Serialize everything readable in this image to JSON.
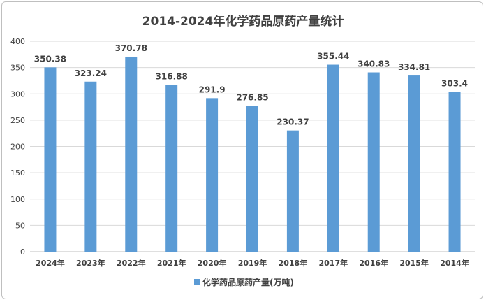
{
  "chart_data": {
    "type": "bar",
    "title": "2014-2024年化学药品原药产量统计",
    "categories": [
      "2024年",
      "2023年",
      "2022年",
      "2021年",
      "2020年",
      "2019年",
      "2018年",
      "2017年",
      "2016年",
      "2015年",
      "2014年"
    ],
    "series": [
      {
        "name": "化学药品原药产量(万吨)",
        "values": [
          350.38,
          323.24,
          370.78,
          316.88,
          291.9,
          276.85,
          230.37,
          355.44,
          340.83,
          334.81,
          303.4
        ],
        "labels": [
          "350.38",
          "323.24",
          "370.78",
          "316.88",
          "291.9",
          "276.85",
          "230.37",
          "355.44",
          "340.83",
          "334.81",
          "303.4"
        ]
      }
    ],
    "xlabel": "",
    "ylabel": "",
    "ylim": [
      0,
      400
    ],
    "yticks": [
      0,
      50,
      100,
      150,
      200,
      250,
      300,
      350,
      400
    ],
    "grid": true,
    "legend_position": "bottom",
    "colors": {
      "bar": "#5b9bd5",
      "grid": "#d9d9d9",
      "text": "#404040"
    }
  }
}
